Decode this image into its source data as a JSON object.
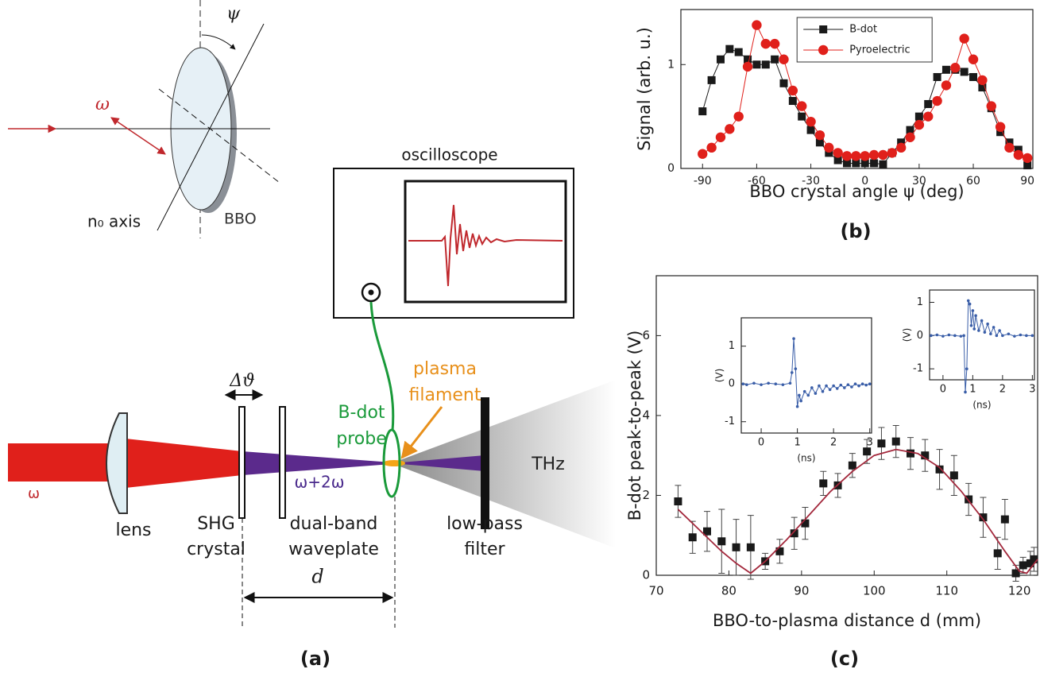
{
  "diagram": {
    "psi": "ψ",
    "omega_in": "ω",
    "n0_axis": "n₀ axis",
    "bbo": "BBO",
    "oscilloscope": "oscilloscope",
    "plasma_filament": [
      "plasma",
      "filament"
    ],
    "bdot_probe": [
      "B-dot",
      "probe"
    ],
    "delta_theta": "Δϑ",
    "omega_beam": "ω",
    "omega_sum": "ω+2ω",
    "thz": "THz",
    "lens": "lens",
    "shg_crystal": [
      "SHG",
      "crystal"
    ],
    "waveplate": [
      "dual-band",
      "waveplate"
    ],
    "filter": [
      "low-pass",
      "filter"
    ],
    "distance": "d",
    "panel_label": "(a)"
  },
  "chart_data": [
    {
      "type": "line",
      "xlabel": "BBO crystal angle ψ (deg)",
      "ylabel": "Signal (arb. u.)",
      "panel_label": "(b)",
      "x": [
        -90,
        -85,
        -80,
        -75,
        -70,
        -65,
        -60,
        -55,
        -50,
        -45,
        -40,
        -35,
        -30,
        -25,
        -20,
        -15,
        -10,
        -5,
        0,
        5,
        10,
        15,
        20,
        25,
        30,
        35,
        40,
        45,
        50,
        55,
        60,
        65,
        70,
        75,
        80,
        85,
        90
      ],
      "xlim": [
        -102,
        93
      ],
      "xticks": [
        -90,
        -60,
        -30,
        0,
        30,
        60,
        90
      ],
      "ylim": [
        0,
        1.53
      ],
      "yticks": [
        0,
        1
      ],
      "legend": "top",
      "series": [
        {
          "name": "B-dot",
          "color": "#1a1a1a",
          "marker": "square",
          "connect": true,
          "values": [
            0.55,
            0.85,
            1.05,
            1.15,
            1.12,
            1.05,
            1.0,
            1.0,
            1.05,
            0.82,
            0.65,
            0.5,
            0.37,
            0.25,
            0.15,
            0.08,
            0.05,
            0.05,
            0.05,
            0.05,
            0.04,
            0.15,
            0.25,
            0.37,
            0.5,
            0.62,
            0.88,
            0.95,
            0.95,
            0.93,
            0.88,
            0.78,
            0.58,
            0.35,
            0.25,
            0.18,
            0.03
          ]
        },
        {
          "name": "Pyroelectric",
          "color": "#e0201b",
          "marker": "circle",
          "connect": true,
          "values": [
            0.14,
            0.2,
            0.3,
            0.38,
            0.5,
            0.98,
            1.38,
            1.2,
            1.2,
            1.05,
            0.75,
            0.6,
            0.45,
            0.32,
            0.2,
            0.15,
            0.12,
            0.12,
            0.12,
            0.13,
            0.13,
            0.15,
            0.2,
            0.3,
            0.42,
            0.5,
            0.65,
            0.8,
            0.97,
            1.25,
            1.05,
            0.85,
            0.6,
            0.4,
            0.2,
            0.13,
            0.1
          ]
        }
      ]
    },
    {
      "type": "scatter",
      "xlabel": "BBO-to-plasma distance d (mm)",
      "ylabel": "B-dot peak-to-peak (V)",
      "panel_label": "(c)",
      "x": [
        73,
        75,
        77,
        79,
        81,
        83,
        85,
        87,
        89,
        90.5,
        93,
        95,
        97,
        99,
        101,
        103,
        105,
        107,
        109,
        111,
        113,
        115,
        117,
        118,
        119.5,
        120.5,
        121.5,
        122
      ],
      "xlim": [
        70,
        122.5
      ],
      "xticks": [
        70,
        80,
        90,
        100,
        110,
        120
      ],
      "ylim": [
        0,
        7.5
      ],
      "yticks": [
        0,
        2,
        4,
        6
      ],
      "series": [
        {
          "color": "#1a1a1a",
          "marker": "square",
          "connect": false,
          "values": [
            1.85,
            0.95,
            1.1,
            0.85,
            0.7,
            0.7,
            0.35,
            0.6,
            1.05,
            1.3,
            2.3,
            2.25,
            2.75,
            3.1,
            3.3,
            3.35,
            3.05,
            3.0,
            2.65,
            2.5,
            1.9,
            1.45,
            0.55,
            1.4,
            0.05,
            0.25,
            0.3,
            0.4
          ],
          "errors": [
            0.4,
            0.4,
            0.5,
            0.8,
            0.7,
            0.8,
            0.2,
            0.3,
            0.4,
            0.4,
            0.3,
            0.3,
            0.3,
            0.3,
            0.4,
            0.4,
            0.4,
            0.4,
            0.5,
            0.5,
            0.4,
            0.5,
            0.4,
            0.5,
            0.2,
            0.2,
            0.3,
            0.3
          ]
        },
        {
          "color": "#a3283c",
          "marker": "none",
          "connect": true,
          "x": [
            73,
            75,
            77,
            79,
            81,
            83,
            85,
            88,
            91,
            94,
            97,
            100,
            103,
            106,
            109,
            112,
            115,
            118,
            120,
            121,
            122.5
          ],
          "values": [
            1.65,
            1.3,
            0.95,
            0.6,
            0.3,
            0.05,
            0.35,
            0.9,
            1.5,
            2.1,
            2.6,
            3.0,
            3.15,
            3.05,
            2.7,
            2.1,
            1.4,
            0.6,
            0.1,
            0.05,
            0.4
          ]
        }
      ]
    },
    {
      "type": "line",
      "xlabel": "(ns)",
      "ylabel": "(V)",
      "x": [
        -0.5,
        -0.4,
        -0.2,
        0,
        0.2,
        0.4,
        0.6,
        0.8,
        0.85,
        0.9,
        0.95,
        1.0,
        1.05,
        1.1,
        1.2,
        1.3,
        1.4,
        1.5,
        1.6,
        1.7,
        1.8,
        1.9,
        2.0,
        2.1,
        2.2,
        2.3,
        2.4,
        2.5,
        2.6,
        2.7,
        2.8,
        2.9,
        3.0
      ],
      "xlim": [
        -0.55,
        3.05
      ],
      "xticks": [
        0,
        1,
        2,
        3
      ],
      "ylim": [
        -1.3,
        1.75
      ],
      "yticks": [
        -1,
        0,
        1
      ],
      "series": [
        {
          "color": "#3a5ea8",
          "marker": "dot",
          "connect": true,
          "values": [
            0,
            -0.02,
            0.02,
            -0.02,
            0.02,
            0,
            -0.02,
            0.02,
            0.3,
            1.2,
            0.4,
            -0.6,
            -0.3,
            -0.45,
            -0.2,
            -0.3,
            -0.1,
            -0.25,
            -0.05,
            -0.2,
            -0.05,
            -0.15,
            -0.05,
            -0.12,
            -0.03,
            -0.1,
            -0.02,
            -0.08,
            0,
            -0.05,
            0,
            -0.03,
            0
          ]
        }
      ]
    },
    {
      "type": "line",
      "xlabel": "(ns)",
      "ylabel": "(V)",
      "x": [
        -0.4,
        -0.2,
        0,
        0.2,
        0.4,
        0.6,
        0.7,
        0.75,
        0.8,
        0.85,
        0.9,
        0.95,
        1.0,
        1.05,
        1.1,
        1.2,
        1.3,
        1.4,
        1.5,
        1.6,
        1.7,
        1.8,
        1.9,
        2.0,
        2.2,
        2.4,
        2.6,
        2.8,
        3.0
      ],
      "xlim": [
        -0.45,
        3.07
      ],
      "xticks": [
        0,
        1,
        2,
        3
      ],
      "ylim": [
        -1.33,
        1.37
      ],
      "yticks": [
        -1,
        0,
        1
      ],
      "series": [
        {
          "color": "#3a5ea8",
          "marker": "dot",
          "connect": true,
          "values": [
            0,
            0.02,
            -0.02,
            0.02,
            0,
            -0.02,
            0,
            -1.7,
            -1.0,
            1.05,
            0.95,
            0.3,
            0.75,
            0.2,
            0.6,
            0.15,
            0.45,
            0.1,
            0.35,
            0.05,
            0.25,
            0,
            0.15,
            0,
            0.05,
            -0.02,
            0.02,
            0,
            0
          ]
        }
      ]
    }
  ]
}
